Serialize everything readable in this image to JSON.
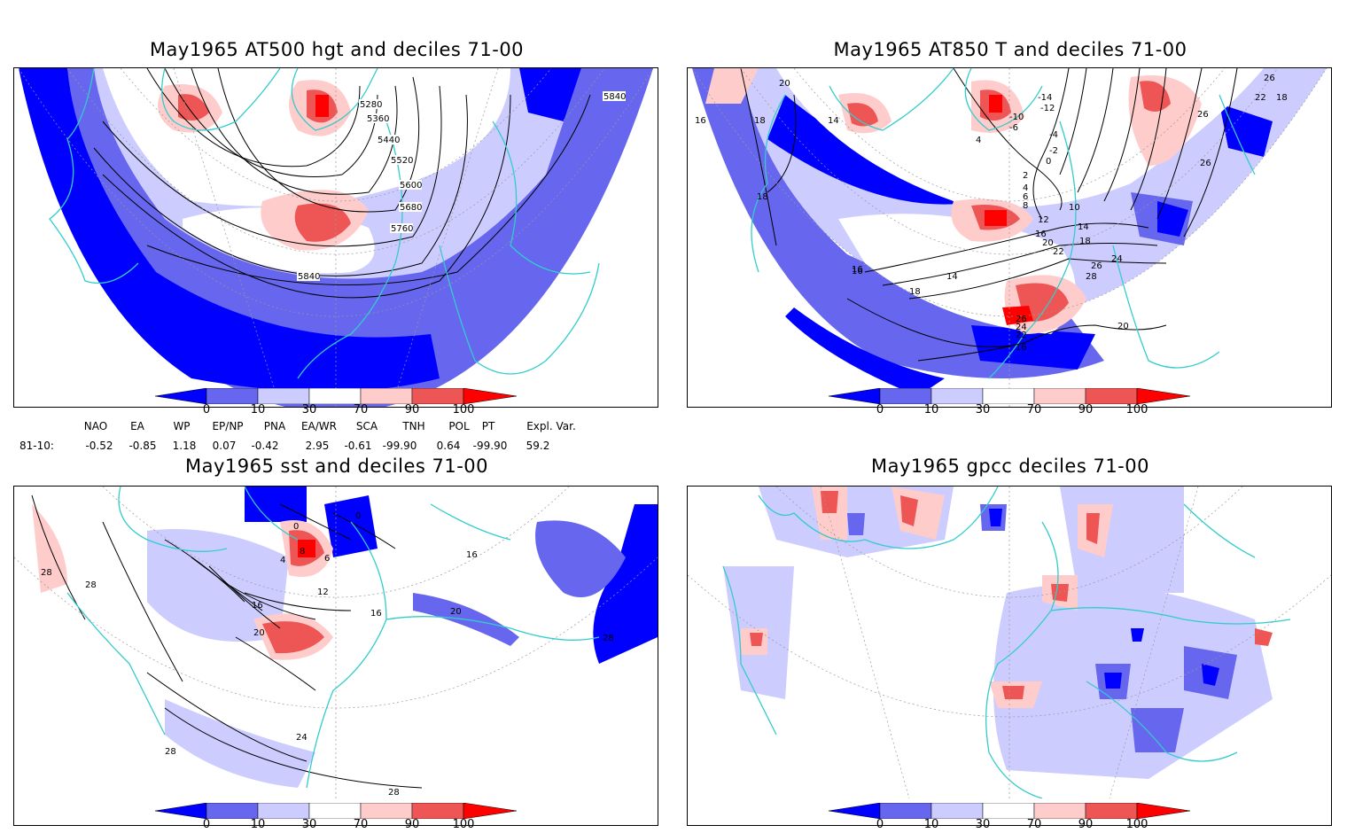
{
  "panels": [
    {
      "title": "May1965 AT500 hgt and deciles 71-00",
      "contour_labels": [
        "5280",
        "5360",
        "5440",
        "5520",
        "5600",
        "5680",
        "5760",
        "5840",
        "5840"
      ]
    },
    {
      "title": "May1965 AT850 T and deciles 71-00",
      "contour_labels": [
        "16",
        "18",
        "18",
        "14",
        "20",
        "26",
        "22",
        "18",
        "16",
        "26",
        "26",
        "-14",
        "-12",
        "-10",
        "-6",
        "-4",
        "-2",
        "0",
        "2",
        "4",
        "6",
        "8",
        "10",
        "12",
        "14",
        "16",
        "18",
        "20",
        "22",
        "24",
        "26",
        "28",
        "26",
        "24",
        "22",
        "16",
        "20",
        "14",
        "18",
        "16",
        "4"
      ]
    },
    {
      "title": "May1965 sst and deciles 71-00",
      "contour_labels": [
        "28",
        "28",
        "0",
        "0",
        "4",
        "8",
        "6",
        "12",
        "16",
        "16",
        "16",
        "20",
        "20",
        "24",
        "28",
        "28",
        "28"
      ]
    },
    {
      "title": "May1965 gpcc deciles 71-00",
      "contour_labels": []
    }
  ],
  "colorbar": {
    "ticks": [
      "0",
      "10",
      "30",
      "70",
      "90",
      "100"
    ],
    "colors": [
      "#0000ff",
      "#6666ee",
      "#ccccff",
      "#ffffff",
      "#ffcccc",
      "#ee5555",
      "#ff0000"
    ]
  },
  "indices": {
    "headers": [
      "NAO",
      "EA",
      "WP",
      "EP/NP",
      "PNA",
      "EA/WR",
      "SCA",
      "TNH",
      "POL",
      "PT",
      "Expl. Var."
    ],
    "row_label": "81-10:",
    "values": [
      "-0.52",
      "-0.85",
      "1.18",
      "0.07",
      "-0.42",
      "2.95",
      "-0.61",
      "-99.90",
      "0.64",
      "-99.90",
      "59.2"
    ]
  },
  "colors": {
    "coast": "#33cccc",
    "strong_blue": "#0000ff",
    "mid_blue": "#6666ee",
    "light_blue": "#ccccff",
    "light_red": "#ffcccc",
    "mid_red": "#ee5555",
    "strong_red": "#ff0000"
  }
}
